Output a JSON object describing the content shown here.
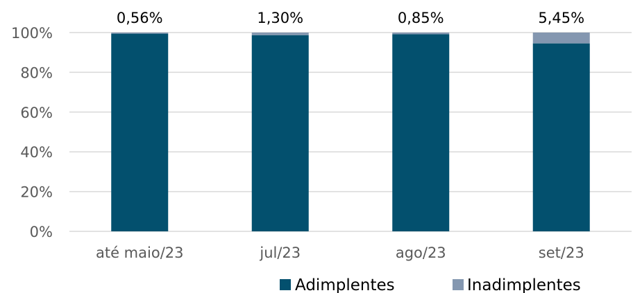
{
  "chart_data": {
    "type": "bar",
    "stacked": true,
    "percent_stacked": true,
    "categories": [
      "até maio/23",
      "jul/23",
      "ago/23",
      "set/23"
    ],
    "series": [
      {
        "name": "Adimplentes",
        "values": [
          99.44,
          98.7,
          99.15,
          94.55
        ],
        "color": "#03506e"
      },
      {
        "name": "Inadimplentes",
        "values": [
          0.56,
          1.3,
          0.85,
          5.45
        ],
        "color": "#8497b0"
      }
    ],
    "data_labels": [
      "0,56%",
      "1,30%",
      "0,85%",
      "5,45%"
    ],
    "ylim": [
      0,
      100
    ],
    "yticks": [
      0,
      20,
      40,
      60,
      80,
      100
    ],
    "ytick_labels": [
      "0%",
      "20%",
      "40%",
      "60%",
      "80%",
      "100%"
    ],
    "grid": true,
    "legend_position": "bottom-right"
  }
}
